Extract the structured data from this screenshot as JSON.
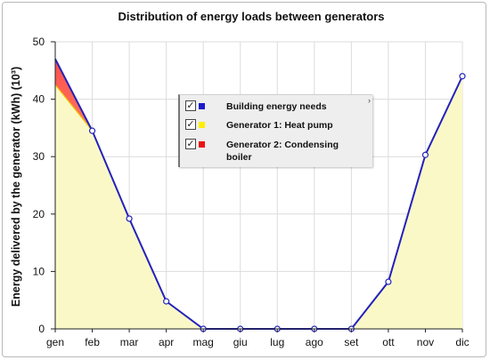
{
  "chart_data": {
    "type": "area",
    "title": "Distribution of energy loads between generators",
    "ylabel": "Energy delivered by the generator (kWh) (10³)",
    "xlabel": "",
    "categories": [
      "gen",
      "feb",
      "mar",
      "apr",
      "mag",
      "giu",
      "lug",
      "ago",
      "set",
      "ott",
      "nov",
      "dic"
    ],
    "ylim": [
      0,
      50
    ],
    "yticks": [
      0,
      10,
      20,
      30,
      40,
      50
    ],
    "grid": true,
    "legend_position": "center",
    "series": [
      {
        "name": "Building energy needs",
        "color": "#2222bb",
        "style": "line-with-markers",
        "values": [
          47,
          34.5,
          19.2,
          4.8,
          0,
          0,
          0,
          0,
          0,
          8.2,
          30.3,
          44
        ]
      },
      {
        "name": "Generator 1: Heat pump",
        "color": "#ffff00",
        "style": "area",
        "values": [
          42.5,
          34.5,
          19.2,
          4.8,
          0,
          0,
          0,
          0,
          0,
          8.2,
          30.3,
          44
        ]
      },
      {
        "name": "Generator 2: Condensing boiler",
        "color": "#ff2020",
        "style": "area-stacked",
        "values": [
          4.5,
          0,
          0,
          0,
          0,
          0,
          0,
          0,
          0,
          0,
          0,
          0
        ]
      }
    ]
  },
  "legend": {
    "items": [
      {
        "label": "Building energy needs",
        "checked": "✓",
        "color": "#1a1acc"
      },
      {
        "label": "Generator 1: Heat pump",
        "checked": "✓",
        "color": "#ffee00"
      },
      {
        "label": "Generator 2: Condensing boiler",
        "checked": "✓",
        "color": "#ee1111"
      }
    ],
    "scroll_glyph": "›"
  }
}
